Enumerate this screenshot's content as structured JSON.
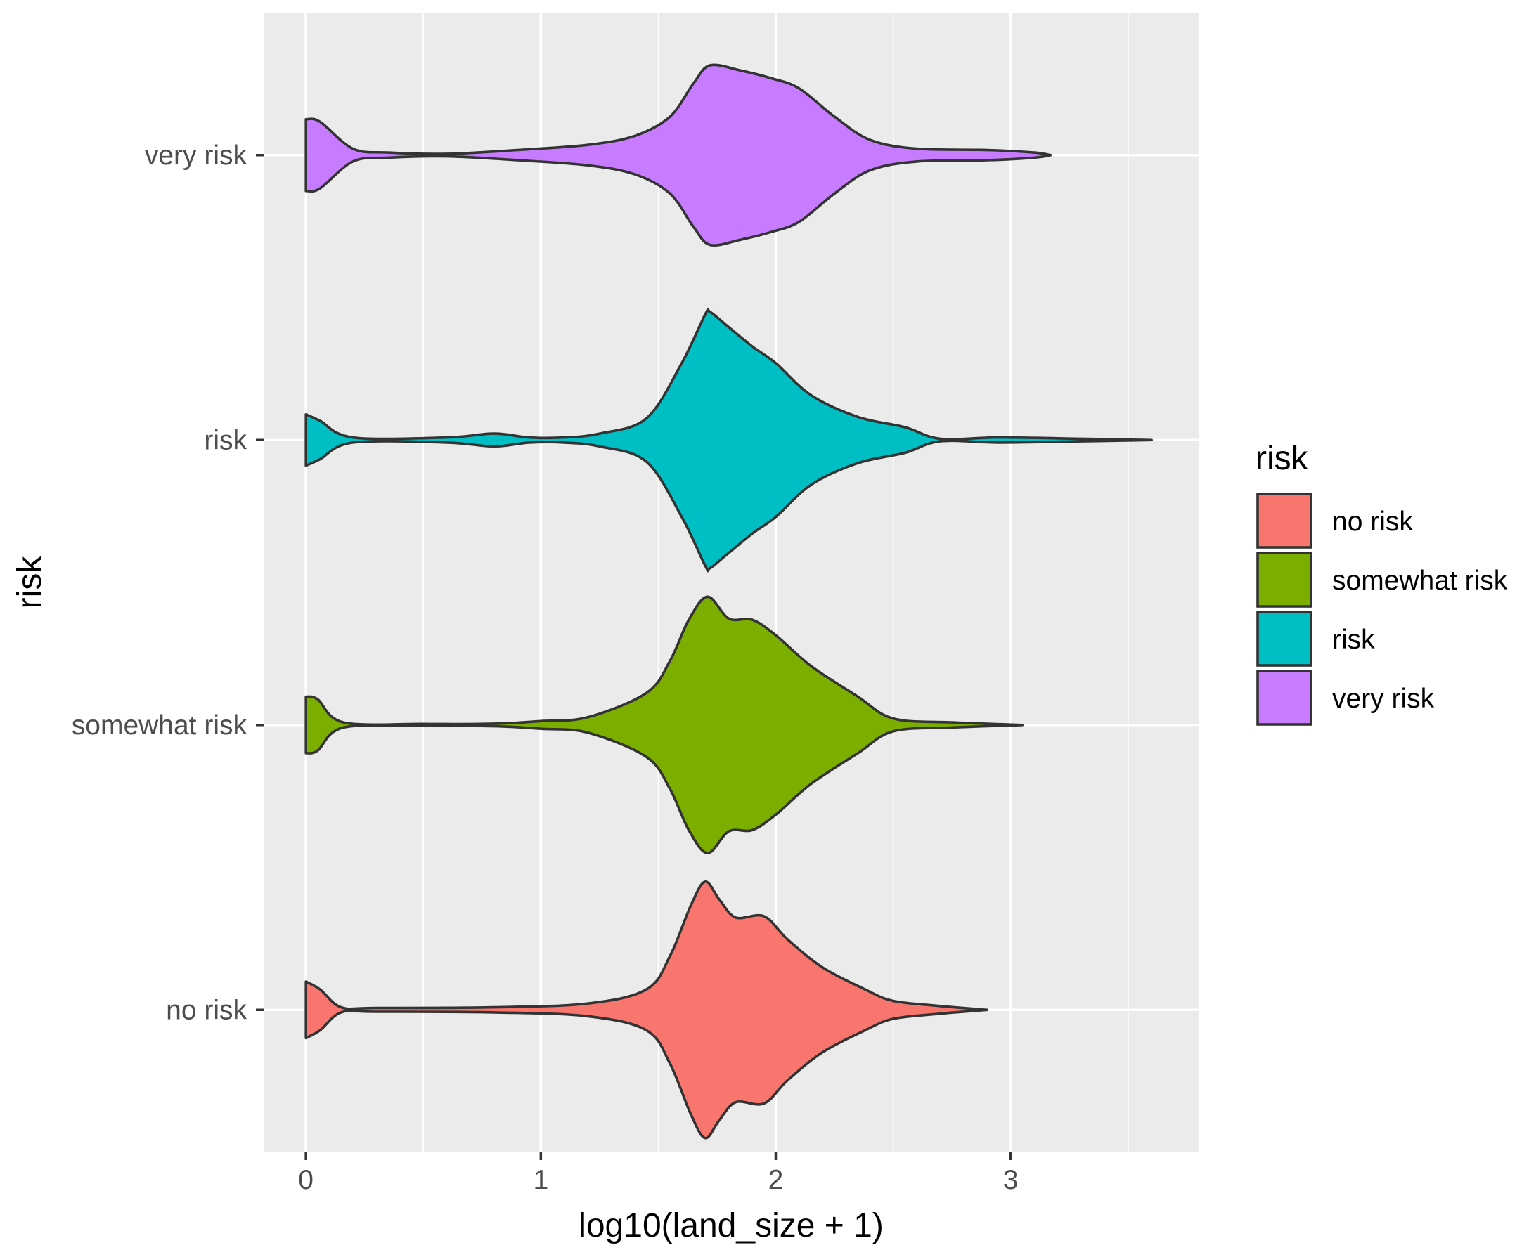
{
  "chart_data": {
    "type": "violin",
    "orientation": "horizontal",
    "title": "",
    "xlabel": "log10(land_size + 1)",
    "ylabel": "risk",
    "xlim": [
      -0.18,
      3.8
    ],
    "xticks": [
      0,
      1,
      2,
      3
    ],
    "xtick_labels": [
      "0",
      "1",
      "2",
      "3"
    ],
    "minor_xticks": [
      0.5,
      1.5,
      2.5,
      3.5
    ],
    "categories": [
      "no risk",
      "somewhat risk",
      "risk",
      "very risk"
    ],
    "legend": {
      "title": "risk",
      "position": "right",
      "entries": [
        {
          "label": "no risk",
          "color": "#F8766D"
        },
        {
          "label": "somewhat risk",
          "color": "#7CAE00"
        },
        {
          "label": "risk",
          "color": "#00BFC4"
        },
        {
          "label": "very risk",
          "color": "#C77CFF"
        }
      ]
    },
    "series": [
      {
        "name": "no risk",
        "color": "#F8766D",
        "density_profile": [
          [
            0,
            0.22
          ],
          [
            0.06,
            0.16
          ],
          [
            0.15,
            0.02
          ],
          [
            0.3,
            0.015
          ],
          [
            0.8,
            0.02
          ],
          [
            1.2,
            0.05
          ],
          [
            1.45,
            0.16
          ],
          [
            1.55,
            0.42
          ],
          [
            1.64,
            0.82
          ],
          [
            1.7,
            1.0
          ],
          [
            1.76,
            0.86
          ],
          [
            1.83,
            0.72
          ],
          [
            1.95,
            0.73
          ],
          [
            2.05,
            0.55
          ],
          [
            2.2,
            0.33
          ],
          [
            2.38,
            0.16
          ],
          [
            2.5,
            0.07
          ],
          [
            2.7,
            0.03
          ],
          [
            2.9,
            0.0
          ]
        ]
      },
      {
        "name": "somewhat risk",
        "color": "#7CAE00",
        "density_profile": [
          [
            0,
            0.22
          ],
          [
            0.05,
            0.2
          ],
          [
            0.16,
            0.02
          ],
          [
            0.5,
            0.008
          ],
          [
            0.8,
            0.01
          ],
          [
            1.0,
            0.03
          ],
          [
            1.2,
            0.06
          ],
          [
            1.45,
            0.25
          ],
          [
            1.55,
            0.5
          ],
          [
            1.63,
            0.82
          ],
          [
            1.71,
            1.0
          ],
          [
            1.8,
            0.83
          ],
          [
            1.9,
            0.82
          ],
          [
            2.0,
            0.7
          ],
          [
            2.15,
            0.46
          ],
          [
            2.35,
            0.22
          ],
          [
            2.5,
            0.05
          ],
          [
            2.75,
            0.02
          ],
          [
            3.05,
            0.0
          ]
        ]
      },
      {
        "name": "risk",
        "color": "#00BFC4",
        "density_profile": [
          [
            0,
            0.2
          ],
          [
            0.06,
            0.15
          ],
          [
            0.2,
            0.02
          ],
          [
            0.6,
            0.02
          ],
          [
            0.8,
            0.05
          ],
          [
            0.95,
            0.02
          ],
          [
            1.1,
            0.02
          ],
          [
            1.25,
            0.05
          ],
          [
            1.45,
            0.17
          ],
          [
            1.6,
            0.6
          ],
          [
            1.7,
            0.98
          ],
          [
            1.72,
            1.0
          ],
          [
            1.8,
            0.88
          ],
          [
            1.9,
            0.73
          ],
          [
            2.0,
            0.6
          ],
          [
            2.15,
            0.35
          ],
          [
            2.35,
            0.18
          ],
          [
            2.55,
            0.1
          ],
          [
            2.7,
            0.01
          ],
          [
            2.95,
            0.02
          ],
          [
            3.3,
            0.01
          ],
          [
            3.6,
            0.0
          ]
        ]
      },
      {
        "name": "very risk",
        "color": "#C77CFF",
        "density_profile": [
          [
            0,
            0.28
          ],
          [
            0.06,
            0.26
          ],
          [
            0.2,
            0.05
          ],
          [
            0.35,
            0.02
          ],
          [
            0.6,
            0.01
          ],
          [
            0.9,
            0.04
          ],
          [
            1.2,
            0.08
          ],
          [
            1.4,
            0.15
          ],
          [
            1.55,
            0.3
          ],
          [
            1.65,
            0.56
          ],
          [
            1.72,
            0.7
          ],
          [
            1.85,
            0.66
          ],
          [
            1.98,
            0.6
          ],
          [
            2.1,
            0.52
          ],
          [
            2.25,
            0.3
          ],
          [
            2.4,
            0.12
          ],
          [
            2.6,
            0.05
          ],
          [
            2.9,
            0.04
          ],
          [
            3.1,
            0.02
          ],
          [
            3.17,
            0.0
          ]
        ]
      }
    ]
  }
}
